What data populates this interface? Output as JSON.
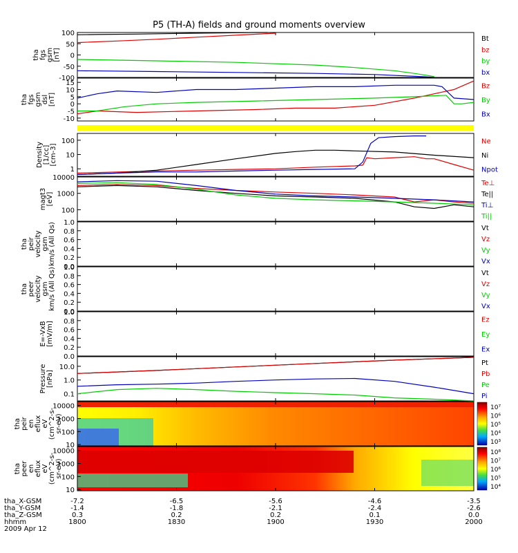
{
  "title": "P5 (TH-A) fields and ground moments overview",
  "time_ticks": [
    "1800",
    "1830",
    "1900",
    "1930",
    "2000"
  ],
  "ephem_rows": [
    {
      "label": "tha_X-GSM",
      "values": [
        "-7.2",
        "-6.5",
        "-5.6",
        "-4.6",
        "-3.5"
      ]
    },
    {
      "label": "tha_Y-GSM",
      "values": [
        "-1.4",
        "-1.8",
        "-2.1",
        "-2.4",
        "-2.6"
      ]
    },
    {
      "label": "tha_Z-GSM",
      "values": [
        "0.3",
        "0.2",
        "0.2",
        "0.1",
        "0.0"
      ]
    },
    {
      "label": "hhmm",
      "values": []
    },
    {
      "label": "2009 Apr 12",
      "values": []
    }
  ],
  "colors": {
    "black": "#000000",
    "red": "#dd0000",
    "green": "#00cc00",
    "blue": "#0000bb",
    "yellow": "#ffff00"
  },
  "chart_data": [
    {
      "type": "line",
      "ylabel": [
        "tha",
        "fgs",
        "gsm",
        "[nT]"
      ],
      "ylim": [
        -100,
        100
      ],
      "yticks": [
        "100",
        "50",
        "0",
        "-50",
        "-100"
      ],
      "ytick_vals": [
        100,
        50,
        0,
        -50,
        -100
      ],
      "legend": [
        "Bt",
        "bz",
        "by",
        "bx"
      ],
      "series": [
        {
          "name": "Bt",
          "color": "black",
          "x": [
            0,
            0.05,
            0.15,
            0.3,
            0.45,
            0.48
          ],
          "values": [
            90,
            91,
            93,
            97,
            100,
            101
          ]
        },
        {
          "name": "bz",
          "color": "red",
          "x": [
            0,
            0.1,
            0.2,
            0.3,
            0.4,
            0.5
          ],
          "values": [
            55,
            62,
            70,
            79,
            88,
            97
          ]
        },
        {
          "name": "by",
          "color": "green",
          "x": [
            0,
            0.2,
            0.4,
            0.6,
            0.7,
            0.8,
            0.85,
            0.9
          ],
          "values": [
            -20,
            -26,
            -33,
            -45,
            -56,
            -70,
            -82,
            -96
          ]
        },
        {
          "name": "bx",
          "color": "blue",
          "x": [
            0,
            0.2,
            0.4,
            0.6,
            0.75,
            0.85,
            0.9
          ],
          "values": [
            -70,
            -74,
            -78,
            -82,
            -87,
            -95,
            -99
          ]
        }
      ]
    },
    {
      "type": "line",
      "ylabel": [
        "tha",
        "fgs",
        "gsm",
        "dsl",
        "[nT]"
      ],
      "ylim": [
        -12,
        18
      ],
      "yticks": [
        "15",
        "10",
        "5",
        "0",
        "-5",
        "-10"
      ],
      "ytick_vals": [
        15,
        10,
        5,
        0,
        -5,
        -10
      ],
      "legend": [
        "Bz",
        "By",
        "Bx"
      ],
      "series": [
        {
          "name": "Bz",
          "color": "red",
          "x": [
            0,
            0.05,
            0.15,
            0.3,
            0.45,
            0.55,
            0.65,
            0.75,
            0.85,
            0.95,
            1
          ],
          "values": [
            -7,
            -5,
            -6,
            -5,
            -4,
            -3,
            -3,
            -1,
            4,
            10,
            16
          ]
        },
        {
          "name": "By",
          "color": "green",
          "x": [
            0,
            0.05,
            0.12,
            0.2,
            0.3,
            0.45,
            0.6,
            0.75,
            0.85,
            0.93,
            0.95,
            0.97,
            1
          ],
          "values": [
            -5,
            -5,
            -2,
            0,
            1,
            2,
            3,
            4,
            5,
            6,
            0,
            0,
            1
          ]
        },
        {
          "name": "Bx",
          "color": "blue",
          "x": [
            0,
            0.05,
            0.1,
            0.2,
            0.3,
            0.4,
            0.5,
            0.6,
            0.7,
            0.8,
            0.9,
            0.92,
            0.95,
            1
          ],
          "values": [
            4,
            7,
            9,
            8,
            10,
            10,
            11,
            12,
            12,
            13,
            13,
            12,
            4,
            3
          ]
        }
      ]
    },
    {
      "type": "line",
      "ylabel": [
        "Density",
        "[1/cc]",
        "[cm-3]"
      ],
      "ylim": [
        0.3,
        300
      ],
      "log": true,
      "yticks": [
        "100",
        "10",
        "1"
      ],
      "ytick_vals": [
        100,
        10,
        1
      ],
      "legend": [
        "Ne",
        "Ni",
        "Npot"
      ],
      "series": [
        {
          "name": "Ne",
          "color": "red",
          "x": [
            0,
            0.1,
            0.2,
            0.3,
            0.4,
            0.5,
            0.6,
            0.7,
            0.72,
            0.73,
            0.75,
            0.8,
            0.85,
            0.88,
            0.9,
            0.95,
            1
          ],
          "values": [
            0.5,
            0.6,
            0.7,
            0.8,
            0.9,
            1.0,
            1.3,
            1.6,
            1.8,
            6,
            5,
            6,
            7,
            5,
            5,
            2,
            0.8
          ]
        },
        {
          "name": "Ni",
          "color": "black",
          "x": [
            0,
            0.1,
            0.2,
            0.3,
            0.4,
            0.5,
            0.55,
            0.6,
            0.65,
            0.7,
            0.8,
            0.9,
            1
          ],
          "values": [
            0.4,
            0.5,
            0.8,
            2,
            5,
            12,
            16,
            20,
            20,
            18,
            15,
            9,
            6
          ]
        },
        {
          "name": "Npot",
          "color": "blue",
          "x": [
            0,
            0.1,
            0.2,
            0.3,
            0.4,
            0.5,
            0.6,
            0.7,
            0.72,
            0.74,
            0.76,
            0.8,
            0.85,
            0.88
          ],
          "values": [
            0.4,
            0.5,
            0.6,
            0.6,
            0.7,
            0.8,
            0.9,
            1.0,
            3,
            60,
            150,
            180,
            200,
            200
          ]
        }
      ]
    },
    {
      "type": "line",
      "ylabel": [
        "magt3",
        "[eV]"
      ],
      "ylim": [
        20,
        10000
      ],
      "log": true,
      "yticks": [
        "10000",
        "1000",
        "100",
        "10"
      ],
      "ytick_vals": [
        10000,
        1000,
        100,
        10
      ],
      "legend": [
        "Te⊥",
        "Te||",
        "Ti⊥",
        "Ti||"
      ],
      "series": [
        {
          "name": "Te⊥",
          "color": "red",
          "x": [
            0,
            0.1,
            0.2,
            0.3,
            0.4,
            0.5,
            0.6,
            0.7,
            0.8,
            0.85,
            0.9,
            0.95,
            1
          ],
          "values": [
            3000,
            3500,
            3000,
            2000,
            1500,
            1200,
            1000,
            800,
            600,
            300,
            400,
            300,
            250
          ]
        },
        {
          "name": "Te||",
          "color": "black",
          "x": [
            0,
            0.1,
            0.2,
            0.3,
            0.4,
            0.5,
            0.6,
            0.7,
            0.8,
            0.85,
            0.9,
            0.95,
            1
          ],
          "values": [
            2500,
            3000,
            2500,
            1500,
            1000,
            700,
            600,
            500,
            300,
            150,
            120,
            200,
            150
          ]
        },
        {
          "name": "Ti⊥",
          "color": "blue",
          "x": [
            0,
            0.1,
            0.2,
            0.3,
            0.4,
            0.5,
            0.6,
            0.7,
            0.8,
            0.9,
            1
          ],
          "values": [
            5000,
            6000,
            5500,
            3000,
            1500,
            900,
            700,
            600,
            500,
            400,
            300
          ]
        },
        {
          "name": "Ti||",
          "color": "green",
          "x": [
            0,
            0.1,
            0.2,
            0.3,
            0.4,
            0.5,
            0.6,
            0.7,
            0.8,
            0.9,
            1
          ],
          "values": [
            4000,
            4500,
            3500,
            1800,
            800,
            500,
            400,
            350,
            300,
            250,
            200
          ]
        }
      ]
    },
    {
      "type": "line",
      "ylabel": [
        "tha",
        "peir",
        "velocity",
        "gsm",
        "km/s (All Qs)"
      ],
      "ylim": [
        0,
        1
      ],
      "yticks": [
        "1.0",
        "0.8",
        "0.6",
        "0.4",
        "0.2",
        "0.0"
      ],
      "ytick_vals": [
        1,
        0.8,
        0.6,
        0.4,
        0.2,
        0
      ],
      "legend": [
        "Vt",
        "Vz",
        "Vy",
        "Vx"
      ],
      "series": []
    },
    {
      "type": "line",
      "ylabel": [
        "tha",
        "peer",
        "velocity",
        "gsm",
        "km/s (All Qs)"
      ],
      "ylim": [
        0,
        1
      ],
      "yticks": [
        "1.0",
        "0.8",
        "0.6",
        "0.4",
        "0.2",
        "0.0"
      ],
      "ytick_vals": [
        1,
        0.8,
        0.6,
        0.4,
        0.2,
        0
      ],
      "legend": [
        "Vt",
        "Vz",
        "Vy",
        "Vx"
      ],
      "series": []
    },
    {
      "type": "line",
      "ylabel": [
        "E=-VxB",
        "[mV/m]"
      ],
      "ylim": [
        0,
        1
      ],
      "yticks": [
        "1.0",
        "0.8",
        "0.6",
        "0.4",
        "0.2",
        "0.0"
      ],
      "ytick_vals": [
        1,
        0.8,
        0.6,
        0.4,
        0.2,
        0
      ],
      "legend": [
        "Ez",
        "Ey",
        "Ex"
      ],
      "series": []
    },
    {
      "type": "line",
      "ylabel": [
        "Pressure",
        "[nPa]"
      ],
      "ylim": [
        0.03,
        50
      ],
      "log": true,
      "yticks": [
        "10.0",
        "1.0",
        "0.1"
      ],
      "ytick_vals": [
        10,
        1,
        0.1
      ],
      "legend": [
        "Pt",
        "Pb",
        "Pe",
        "Pi"
      ],
      "series": [
        {
          "name": "Pt",
          "color": "black",
          "x": [
            0,
            0.2,
            0.4,
            0.6,
            0.8,
            1
          ],
          "values": [
            3,
            5,
            9,
            16,
            28,
            45
          ]
        },
        {
          "name": "Pb",
          "color": "red",
          "x": [
            0,
            0.2,
            0.4,
            0.6,
            0.8,
            1
          ],
          "values": [
            3,
            5,
            9,
            16,
            28,
            45
          ]
        },
        {
          "name": "Pe",
          "color": "green",
          "x": [
            0,
            0.1,
            0.2,
            0.3,
            0.4,
            0.5,
            0.6,
            0.7,
            0.8,
            0.9,
            1
          ],
          "values": [
            0.1,
            0.2,
            0.25,
            0.2,
            0.15,
            0.12,
            0.1,
            0.08,
            0.05,
            0.04,
            0.03
          ]
        },
        {
          "name": "Pi",
          "color": "blue",
          "x": [
            0,
            0.1,
            0.2,
            0.3,
            0.4,
            0.5,
            0.6,
            0.7,
            0.8,
            0.9,
            1
          ],
          "values": [
            0.35,
            0.45,
            0.5,
            0.6,
            0.8,
            1.0,
            1.2,
            1.3,
            0.8,
            0.3,
            0.1
          ]
        }
      ]
    },
    {
      "type": "heatmap",
      "ylabel": [
        "tha",
        "peir",
        "en",
        "eflux",
        "eV",
        "(cm^2-s-",
        "sr-eV)"
      ],
      "ylim": [
        8,
        20000
      ],
      "log": true,
      "yticks": [
        "10000",
        "1000",
        "100",
        "10"
      ],
      "ytick_vals": [
        10000,
        1000,
        100,
        10
      ],
      "colorbar": [
        "10⁷",
        "10⁶",
        "10⁵",
        "10⁴",
        "10³"
      ]
    },
    {
      "type": "heatmap",
      "ylabel": [
        "tha",
        "peer",
        "en",
        "eflux",
        "eV",
        "(cm^2-s-",
        "sr-eV)"
      ],
      "ylim": [
        8,
        20000
      ],
      "log": true,
      "yticks": [
        "10000",
        "1000",
        "100",
        "10"
      ],
      "ytick_vals": [
        10000,
        1000,
        100,
        10
      ],
      "colorbar": [
        "10⁸",
        "10⁷",
        "10⁶",
        "10⁵",
        "10⁴"
      ]
    }
  ]
}
